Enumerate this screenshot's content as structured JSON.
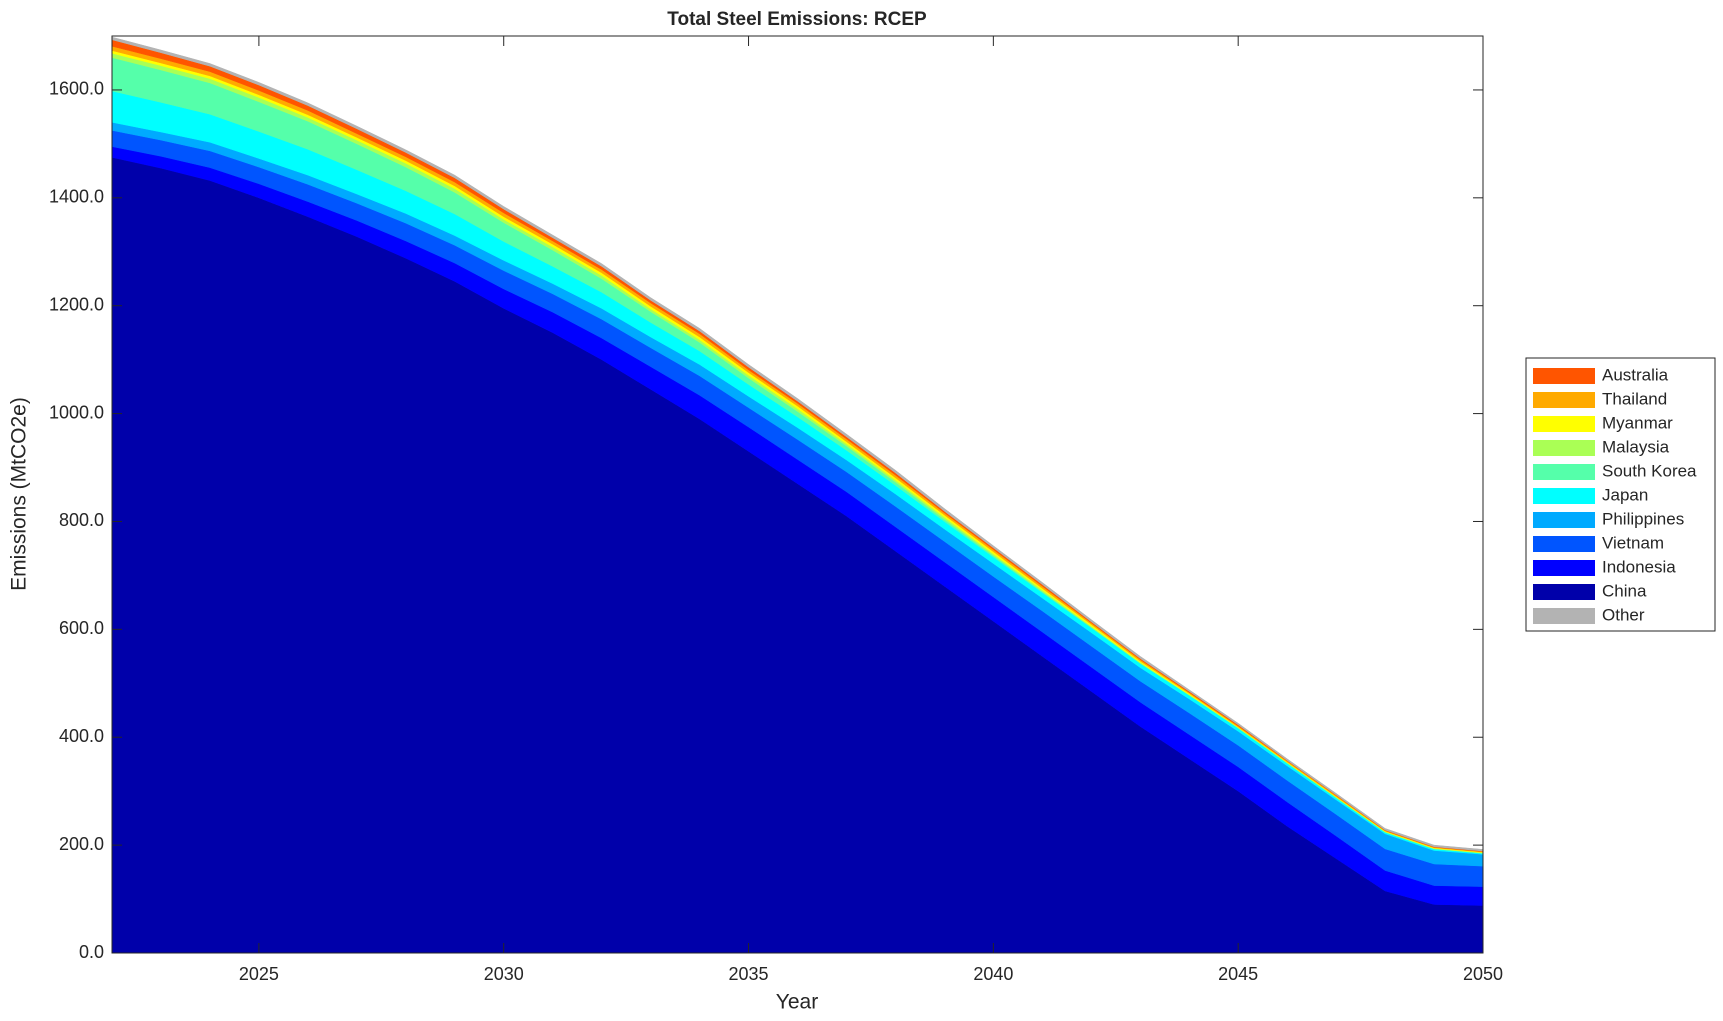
{
  "chart_data": {
    "type": "stacked_area",
    "title": "Total Steel Emissions: RCEP",
    "x_label": "Year",
    "y_label": "Emissions (MtCO2e)",
    "x": [
      2022,
      2023,
      2024,
      2025,
      2026,
      2027,
      2028,
      2029,
      2030,
      2031,
      2032,
      2033,
      2034,
      2035,
      2036,
      2037,
      2038,
      2039,
      2040,
      2041,
      2042,
      2043,
      2044,
      2045,
      2046,
      2047,
      2048,
      2049,
      2050
    ],
    "xlim": [
      2022,
      2050
    ],
    "xticks": [
      2025,
      2030,
      2035,
      2040,
      2045,
      2050
    ],
    "ylim": [
      0,
      1700
    ],
    "yticks": [
      {
        "value": 0,
        "label": "0.0"
      },
      {
        "value": 200,
        "label": "200.0"
      },
      {
        "value": 400,
        "label": "400.0"
      },
      {
        "value": 600,
        "label": "600.0"
      },
      {
        "value": 800,
        "label": "800.0"
      },
      {
        "value": 1000,
        "label": "1000.0"
      },
      {
        "value": 1200,
        "label": "1200.0"
      },
      {
        "value": 1400,
        "label": "1400.0"
      },
      {
        "value": 1600,
        "label": "1600.0"
      }
    ],
    "legend": "outside-right",
    "series": [
      {
        "name": "China",
        "color": "#0000aa",
        "values": [
          1475,
          1455,
          1432,
          1400,
          1365,
          1328,
          1288,
          1245,
          1195,
          1150,
          1100,
          1045,
          990,
          930,
          870,
          810,
          745,
          680,
          615,
          550,
          485,
          420,
          360,
          300,
          235,
          175,
          115,
          90,
          88
        ]
      },
      {
        "name": "Indonesia",
        "color": "#0000ff",
        "values": [
          20,
          22,
          24,
          26,
          28,
          30,
          32,
          34,
          36,
          38,
          40,
          42,
          44,
          45,
          45,
          45,
          45,
          45,
          45,
          45,
          45,
          45,
          45,
          45,
          45,
          42,
          38,
          35,
          35
        ]
      },
      {
        "name": "Vietnam",
        "color": "#0055ff",
        "values": [
          30,
          30,
          31,
          31,
          32,
          32,
          33,
          33,
          34,
          34,
          35,
          35,
          36,
          36,
          37,
          37,
          38,
          38,
          38,
          39,
          39,
          39,
          40,
          40,
          40,
          40,
          40,
          40,
          38
        ]
      },
      {
        "name": "Philippines",
        "color": "#00aaff",
        "values": [
          15,
          15,
          16,
          16,
          17,
          17,
          18,
          18,
          19,
          19,
          20,
          20,
          21,
          21,
          22,
          22,
          23,
          23,
          24,
          24,
          25,
          25,
          26,
          26,
          27,
          27,
          28,
          25,
          22
        ]
      },
      {
        "name": "Japan",
        "color": "#00ffff",
        "values": [
          58,
          55,
          52,
          50,
          48,
          45,
          42,
          40,
          35,
          32,
          30,
          27,
          25,
          22,
          20,
          18,
          16,
          14,
          12,
          10,
          9,
          8,
          7,
          6,
          5,
          4,
          3,
          3,
          2
        ]
      },
      {
        "name": "South Korea",
        "color": "#55ffaa",
        "values": [
          62,
          60,
          58,
          55,
          52,
          48,
          44,
          40,
          35,
          30,
          25,
          20,
          16,
          12,
          10,
          8,
          6,
          4,
          3,
          2,
          1,
          0,
          0,
          0,
          0,
          0,
          0,
          0,
          0
        ]
      },
      {
        "name": "Malaysia",
        "color": "#aaff55",
        "values": [
          8,
          8,
          8,
          8,
          7,
          7,
          7,
          7,
          6,
          6,
          6,
          5,
          5,
          5,
          5,
          4,
          4,
          4,
          3,
          3,
          2,
          2,
          1,
          1,
          1,
          1,
          1,
          1,
          1
        ]
      },
      {
        "name": "Myanmar",
        "color": "#ffff00",
        "values": [
          5,
          5,
          5,
          5,
          5,
          5,
          5,
          5,
          5,
          5,
          5,
          5,
          5,
          5,
          5,
          4,
          4,
          4,
          4,
          3,
          3,
          2,
          2,
          1,
          1,
          1,
          1,
          1,
          1
        ]
      },
      {
        "name": "Thailand",
        "color": "#ffaa00",
        "values": [
          8,
          8,
          8,
          8,
          8,
          7,
          7,
          7,
          7,
          6,
          6,
          6,
          6,
          5,
          5,
          5,
          5,
          4,
          4,
          4,
          3,
          3,
          2,
          2,
          2,
          2,
          1,
          1,
          1
        ]
      },
      {
        "name": "Australia",
        "color": "#ff5500",
        "values": [
          12,
          11,
          10,
          10,
          9,
          9,
          8,
          8,
          7,
          6,
          6,
          5,
          5,
          5,
          4,
          4,
          4,
          3,
          3,
          3,
          2,
          2,
          2,
          2,
          1,
          1,
          1,
          1,
          1
        ]
      },
      {
        "name": "Other",
        "color": "#b3b3b3",
        "values": [
          5,
          5,
          5,
          5,
          5,
          5,
          5,
          5,
          5,
          5,
          5,
          5,
          5,
          5,
          5,
          5,
          5,
          5,
          4,
          4,
          4,
          4,
          3,
          3,
          3,
          3,
          3,
          3,
          3
        ]
      }
    ]
  }
}
